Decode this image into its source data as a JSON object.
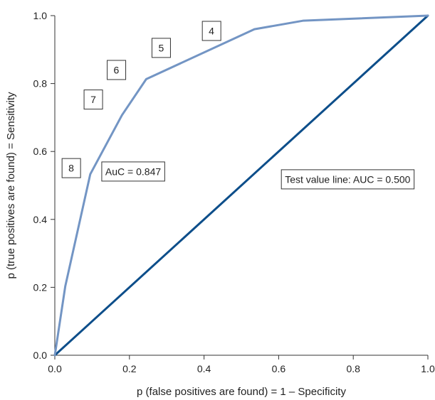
{
  "chart_data": {
    "type": "line",
    "title": "",
    "xlabel": "p (false positives are found) = 1 – Specificity",
    "ylabel": "p (true positives are found) = Sensitivity",
    "xlim": [
      0,
      1
    ],
    "ylim": [
      0,
      1
    ],
    "x_ticks": [
      "0.0",
      "0.2",
      "0.4",
      "0.6",
      "0.8",
      "1.0"
    ],
    "y_ticks": [
      "0.0",
      "0.2",
      "0.4",
      "0.6",
      "0.8",
      "1.0"
    ],
    "grid": false,
    "legend": "none",
    "series": [
      {
        "name": "",
        "color": "#7395c4",
        "x": [
          0.0,
          0.028,
          0.095,
          0.18,
          0.245,
          0.535,
          0.665,
          1.0
        ],
        "y": [
          0.0,
          0.203,
          0.533,
          0.707,
          0.813,
          0.96,
          0.985,
          1.0
        ]
      },
      {
        "name": "",
        "color": "#0d4e8a",
        "x": [
          0.0,
          1.0
        ],
        "y": [
          0.0,
          1.0
        ]
      }
    ],
    "annotations": [
      {
        "text": "4",
        "x": 0.42,
        "y": 0.955
      },
      {
        "text": "5",
        "x": 0.285,
        "y": 0.905
      },
      {
        "text": "6",
        "x": 0.165,
        "y": 0.84
      },
      {
        "text": "7",
        "x": 0.103,
        "y": 0.753
      },
      {
        "text": "8",
        "x": 0.044,
        "y": 0.551
      },
      {
        "text": "AuC = 0.847",
        "x": 0.21,
        "y": 0.541
      },
      {
        "text": "Test value line: AUC = 0.500",
        "x": 0.785,
        "y": 0.518
      }
    ]
  }
}
